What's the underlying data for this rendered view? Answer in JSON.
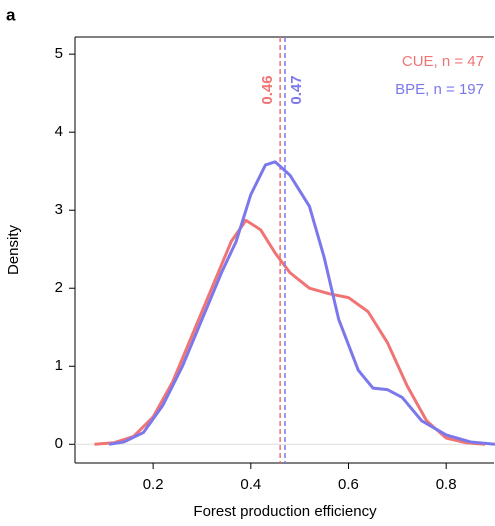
{
  "chart_data": {
    "type": "line",
    "panel_label": "a",
    "x_label": "Forest production efficiency",
    "y_label": "Density",
    "xlim": [
      0.04,
      0.9
    ],
    "ylim": [
      -0.24,
      5.22
    ],
    "xticks": [
      0.2,
      0.4,
      0.6,
      0.8
    ],
    "yticks": [
      0,
      1,
      2,
      3,
      4,
      5
    ],
    "series": [
      {
        "name": "CUE, n = 47",
        "color": "#f07474",
        "mean": 0.46,
        "x": [
          0.08,
          0.12,
          0.16,
          0.2,
          0.24,
          0.28,
          0.32,
          0.36,
          0.39,
          0.42,
          0.45,
          0.48,
          0.52,
          0.56,
          0.6,
          0.64,
          0.68,
          0.72,
          0.76,
          0.8,
          0.84,
          0.88
        ],
        "values": [
          0,
          0.02,
          0.1,
          0.35,
          0.8,
          1.4,
          2.0,
          2.6,
          2.87,
          2.75,
          2.45,
          2.2,
          2.0,
          1.93,
          1.88,
          1.7,
          1.3,
          0.75,
          0.3,
          0.08,
          0.02,
          0
        ]
      },
      {
        "name": "BPE, n = 197",
        "color": "#7b78ec",
        "mean": 0.47,
        "x": [
          0.11,
          0.14,
          0.18,
          0.22,
          0.26,
          0.3,
          0.34,
          0.37,
          0.4,
          0.43,
          0.45,
          0.48,
          0.52,
          0.55,
          0.58,
          0.62,
          0.65,
          0.68,
          0.71,
          0.75,
          0.8,
          0.85,
          0.9
        ],
        "values": [
          0,
          0.03,
          0.15,
          0.5,
          1.0,
          1.6,
          2.2,
          2.6,
          3.2,
          3.58,
          3.62,
          3.45,
          3.05,
          2.4,
          1.6,
          0.95,
          0.72,
          0.7,
          0.6,
          0.3,
          0.12,
          0.03,
          0
        ]
      }
    ]
  }
}
